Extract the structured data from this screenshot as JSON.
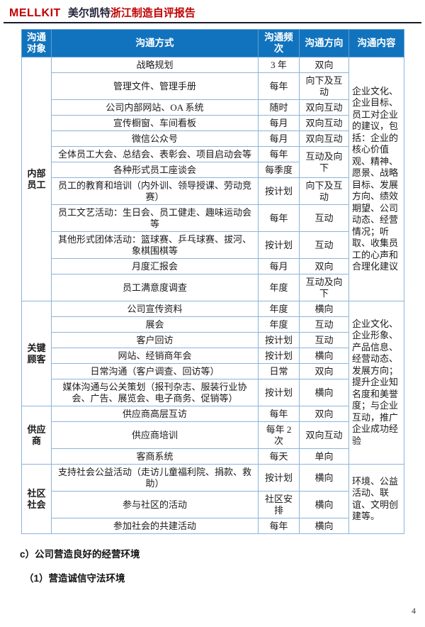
{
  "header": {
    "brand": "MELLKIT",
    "company": "美尔凯特",
    "title": "浙江制造自评报告"
  },
  "theme": {
    "brand-red": "#c00000",
    "header-blue": "#1173bd",
    "table-border": "#8eb4d9",
    "text-color": "#1a1a1a",
    "rule-color": "#1a1a2e"
  },
  "table": {
    "columns": [
      "沟通对象",
      "沟通方式",
      "沟通频次",
      "沟通方向",
      "沟通内容"
    ],
    "target_groups": [
      {
        "label": "内部员工",
        "start": 0,
        "count": 12
      },
      {
        "label": "关键顾客",
        "start": 12,
        "count": 6
      },
      {
        "label": "供应商",
        "start": 18,
        "count": 3
      },
      {
        "label": "社区社会",
        "start": 21,
        "count": 3
      }
    ],
    "content_groups": [
      {
        "start": 0,
        "count": 12,
        "text": "企业文化、企业目标、员工对企业的建议，包括：企业的核心价值观、精神、愿景、战略目标、发展方向、绩效期望、公司动态、经营情况；听取、收集员工的心声和合理化建议"
      },
      {
        "start": 12,
        "count": 9,
        "text": "企业文化、企业形象、产品信息、经营动态、发展方向；提升企业知名度和美誉度；与企业互动，推广企业成功经验"
      },
      {
        "start": 21,
        "count": 3,
        "text": "环境、公益活动、联谊、文明创建等。"
      }
    ],
    "rows": [
      {
        "method": "战略规划",
        "freq": "3 年",
        "dir": "双向"
      },
      {
        "method": "管理文件、管理手册",
        "freq": "每年",
        "dir": "向下及互动"
      },
      {
        "method": "公司内部网站、OA 系统",
        "freq": "随时",
        "dir": "双向互动"
      },
      {
        "method": "宣传橱窗、车间看板",
        "freq": "每月",
        "dir": "双向互动"
      },
      {
        "method": "微信公众号",
        "freq": "每月",
        "dir": "双向互动"
      },
      {
        "method": "全体员工大会、总结会、表彰会、项目启动会等",
        "freq": "每年",
        "dir": "互动及向下",
        "dir_rowspan": 2
      },
      {
        "method": "各种形式员工座谈会",
        "freq": "每季度",
        "dir": null
      },
      {
        "method": "员工的教育和培训（内外训、领导授课、劳动竞赛）",
        "freq": "按计划",
        "dir": "向下及互动"
      },
      {
        "method": "员工文艺活动：生日会、员工健走、趣味运动会等",
        "freq": "每年",
        "dir": "互动"
      },
      {
        "method": "其他形式团体活动：篮球赛、乒乓球赛、拔河、象棋围棋等",
        "freq": "按计划",
        "dir": "互动"
      },
      {
        "method": "月度汇报会",
        "freq": "每月",
        "dir": "双向"
      },
      {
        "method": "员工满意度调查",
        "freq": "年度",
        "dir": "互动及向下"
      },
      {
        "method": "公司宣传资料",
        "freq": "年度",
        "dir": "横向"
      },
      {
        "method": "展会",
        "freq": "年度",
        "dir": "互动"
      },
      {
        "method": "客户回访",
        "freq": "按计划",
        "dir": "互动"
      },
      {
        "method": "网站、经销商年会",
        "freq": "按计划",
        "dir": "横向"
      },
      {
        "method": "日常沟通（客户调查、回访等）",
        "freq": "日常",
        "dir": "双向"
      },
      {
        "method": "媒体沟通与公关策划（报刊杂志、服装行业协会、广告、展览会、电子商务、促销等）",
        "freq": "按计划",
        "dir": "横向"
      },
      {
        "method": "供应商高层互访",
        "freq": "每年",
        "dir": "双向"
      },
      {
        "method": "供应商培训",
        "freq": "每年 2 次",
        "dir": "双向互动"
      },
      {
        "method": "客商系统",
        "freq": "每天",
        "dir": "单向"
      },
      {
        "method": "支持社会公益活动（走访儿童福利院、捐款、救助）",
        "freq": "按计划",
        "dir": "横向"
      },
      {
        "method": "参与社区的活动",
        "freq": "社区安排",
        "dir": "横向"
      },
      {
        "method": "参加社会的共建活动",
        "freq": "每年",
        "dir": "横向"
      }
    ]
  },
  "sections": {
    "heading_c": "c）公司营造良好的经营环境",
    "heading_c1": "（1）营造诚信守法环境"
  },
  "footer": {
    "page_number": "4"
  }
}
